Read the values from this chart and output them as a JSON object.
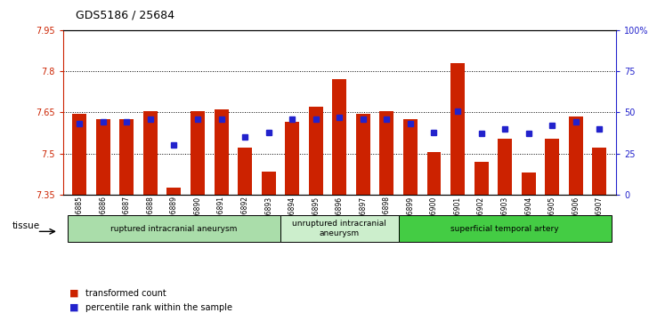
{
  "title": "GDS5186 / 25684",
  "samples": [
    "GSM1306885",
    "GSM1306886",
    "GSM1306887",
    "GSM1306888",
    "GSM1306889",
    "GSM1306890",
    "GSM1306891",
    "GSM1306892",
    "GSM1306893",
    "GSM1306894",
    "GSM1306895",
    "GSM1306896",
    "GSM1306897",
    "GSM1306898",
    "GSM1306899",
    "GSM1306900",
    "GSM1306901",
    "GSM1306902",
    "GSM1306903",
    "GSM1306904",
    "GSM1306905",
    "GSM1306906",
    "GSM1306907"
  ],
  "bar_values": [
    7.645,
    7.625,
    7.625,
    7.655,
    7.375,
    7.655,
    7.66,
    7.52,
    7.435,
    7.615,
    7.67,
    7.77,
    7.645,
    7.655,
    7.625,
    7.505,
    7.83,
    7.47,
    7.555,
    7.43,
    7.555,
    7.635,
    7.52
  ],
  "percentile_values": [
    43,
    44,
    44,
    46,
    30,
    46,
    46,
    35,
    38,
    46,
    46,
    47,
    46,
    46,
    43,
    38,
    51,
    37,
    40,
    37,
    42,
    44,
    40
  ],
  "ylim_left": [
    7.35,
    7.95
  ],
  "ylim_right": [
    0,
    100
  ],
  "yticks_left": [
    7.35,
    7.5,
    7.65,
    7.8,
    7.95
  ],
  "yticks_right": [
    0,
    25,
    50,
    75,
    100
  ],
  "ytick_labels_right": [
    "0",
    "25",
    "50",
    "75",
    "100%"
  ],
  "bar_color": "#cc2200",
  "dot_color": "#2222cc",
  "bar_bottom": 7.35,
  "groups": [
    {
      "label": "ruptured intracranial aneurysm",
      "start": 0,
      "end": 9,
      "color": "#aaddaa"
    },
    {
      "label": "unruptured intracranial\naneurysm",
      "start": 9,
      "end": 14,
      "color": "#cceecc"
    },
    {
      "label": "superficial temporal artery",
      "start": 14,
      "end": 23,
      "color": "#44cc44"
    }
  ],
  "tissue_label": "tissue",
  "legend_items": [
    {
      "label": "transformed count",
      "color": "#cc2200"
    },
    {
      "label": "percentile rank within the sample",
      "color": "#2222cc"
    }
  ]
}
